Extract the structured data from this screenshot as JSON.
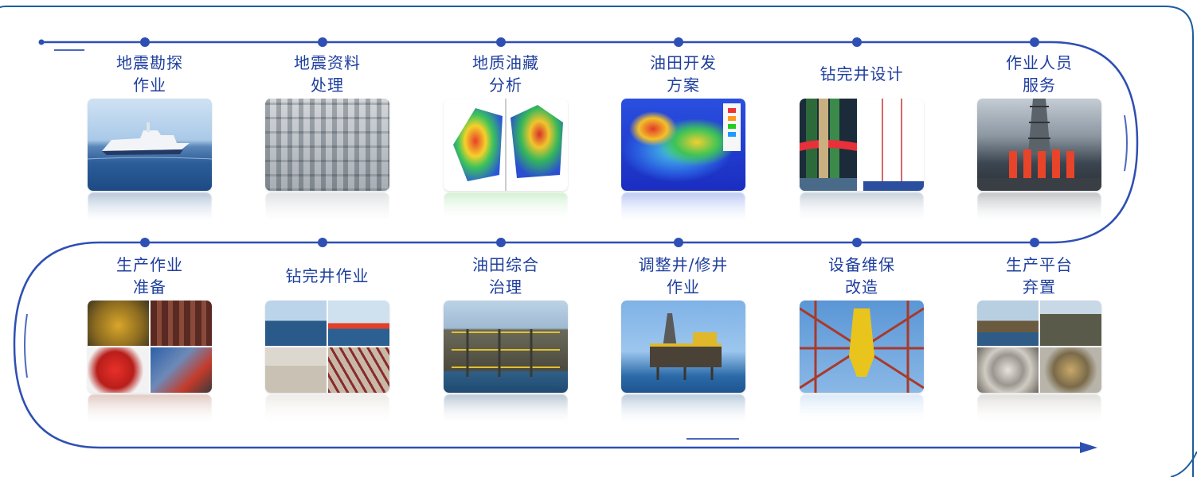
{
  "top_row": [
    {
      "lines": [
        "地震勘探",
        "作业"
      ],
      "image": "seismic-vessel-photo"
    },
    {
      "lines": [
        "地震资料",
        "处理"
      ],
      "image": "processing-center-photo"
    },
    {
      "lines": [
        "地质油藏",
        "分析"
      ],
      "image": "reservoir-model-photo"
    },
    {
      "lines": [
        "油田开发",
        "方案"
      ],
      "image": "development-map-photo"
    },
    {
      "lines": [
        "钻完井设计"
      ],
      "image": "well-design-photo"
    },
    {
      "lines": [
        "作业人员",
        "服务"
      ],
      "image": "crew-photo"
    }
  ],
  "bottom_row": [
    {
      "lines": [
        "生产作业",
        "准备"
      ],
      "image": "equipment-collage-photo"
    },
    {
      "lines": [
        "钻完井作业"
      ],
      "image": "drilling-collage-photo"
    },
    {
      "lines": [
        "油田综合",
        "治理"
      ],
      "image": "platform-photo"
    },
    {
      "lines": [
        "调整井/修井",
        "作业"
      ],
      "image": "workover-platform-photo"
    },
    {
      "lines": [
        "设备维保",
        "改造"
      ],
      "image": "maintenance-photo"
    },
    {
      "lines": [
        "生产平台",
        "弃置"
      ],
      "image": "decommission-collage-photo"
    }
  ],
  "colors": {
    "accent": "#2e4fb3",
    "label": "#1f3f9e",
    "frame": "#1d5d9b"
  }
}
